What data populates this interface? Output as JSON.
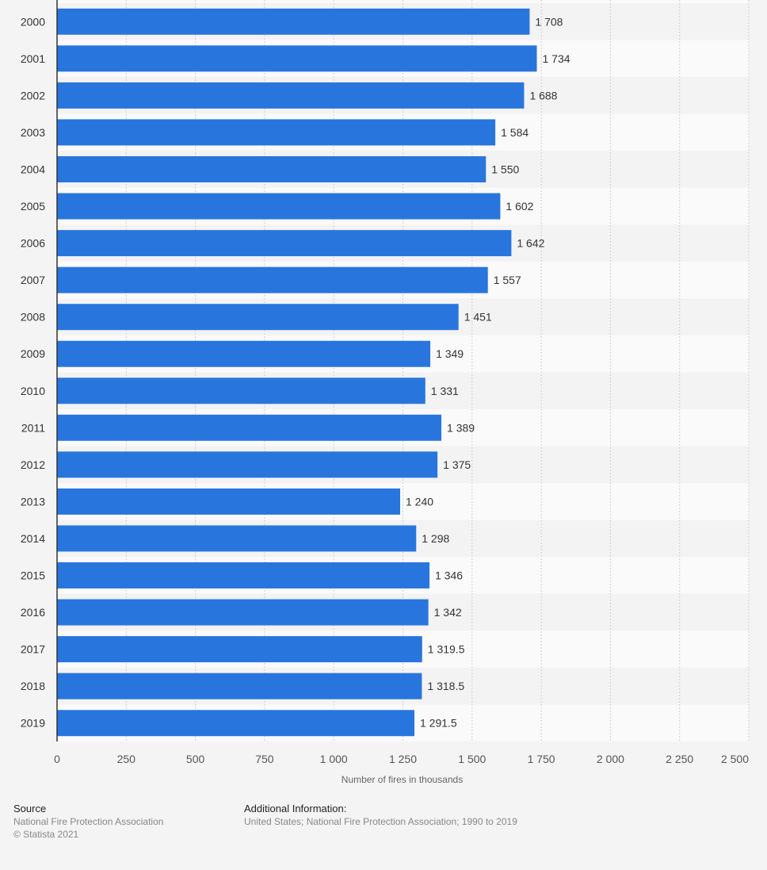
{
  "chart_data": {
    "type": "bar",
    "orientation": "horizontal",
    "title": "",
    "xlabel": "Number of fires in thousands",
    "ylabel": "",
    "xlim": [
      0,
      2500
    ],
    "xticks": [
      0,
      250,
      500,
      750,
      1000,
      1250,
      1500,
      1750,
      2000,
      2250,
      2500
    ],
    "xtick_labels": [
      "0",
      "250",
      "500",
      "750",
      "1 000",
      "1 250",
      "1 500",
      "1 750",
      "2 000",
      "2 250",
      "2 500"
    ],
    "grid": true,
    "categories": [
      "2000",
      "2001",
      "2002",
      "2003",
      "2004",
      "2005",
      "2006",
      "2007",
      "2008",
      "2009",
      "2010",
      "2011",
      "2012",
      "2013",
      "2014",
      "2015",
      "2016",
      "2017",
      "2018",
      "2019"
    ],
    "values": [
      1708,
      1734,
      1688,
      1584,
      1550,
      1602,
      1642,
      1557,
      1451,
      1349,
      1331,
      1389,
      1375,
      1240,
      1298,
      1346,
      1342,
      1319.5,
      1318.5,
      1291.5
    ],
    "value_labels": [
      "1 708",
      "1 734",
      "1 688",
      "1 584",
      "1 550",
      "1 602",
      "1 642",
      "1 557",
      "1 451",
      "1 349",
      "1 331",
      "1 389",
      "1 375",
      "1 240",
      "1 298",
      "1 346",
      "1 342",
      "1 319.5",
      "1 318.5",
      "1 291.5"
    ],
    "bar_color": "#2876dd"
  },
  "footer": {
    "source_heading": "Source",
    "source_text": "National Fire Protection Association",
    "copyright": "© Statista 2021",
    "additional_heading": "Additional Information:",
    "additional_text": "United States; National Fire Protection Association; 1990 to 2019"
  }
}
